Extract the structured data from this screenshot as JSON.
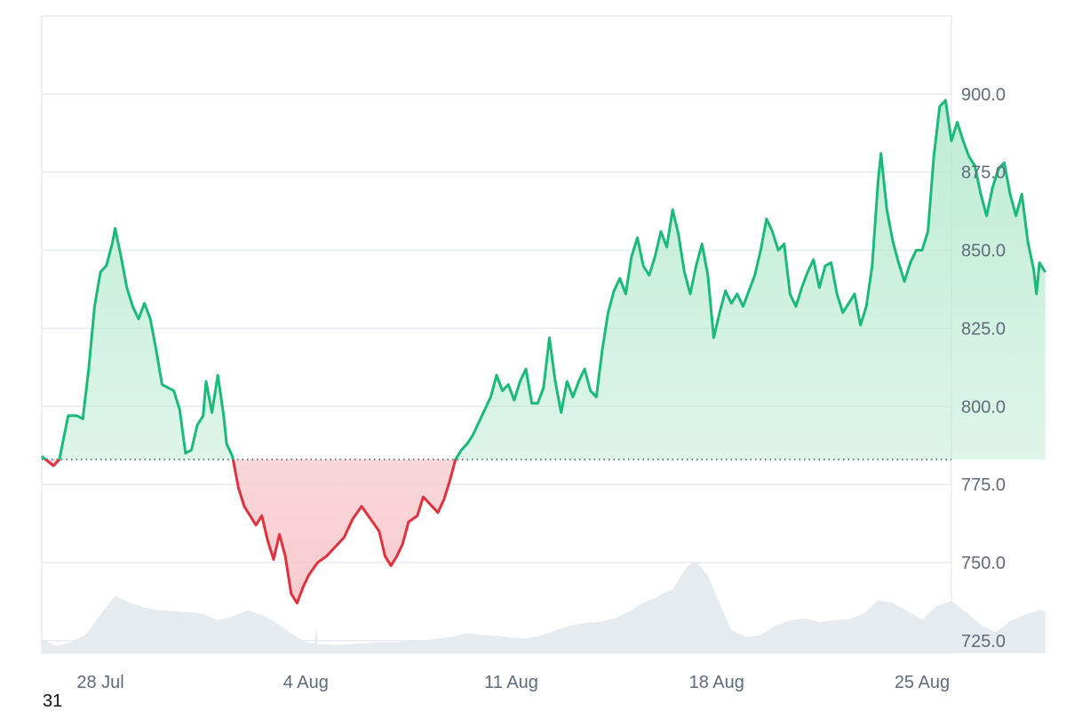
{
  "chart_data": {
    "type": "area",
    "x_axis": {
      "start": "2025-07-26",
      "end": "2025-08-26",
      "ticks": [
        "28 Jul",
        "4 Aug",
        "11 Aug",
        "18 Aug",
        "25 Aug"
      ],
      "tick_dates": [
        "2025-07-28",
        "2025-08-04",
        "2025-08-11",
        "2025-08-18",
        "2025-08-25"
      ]
    },
    "y_axis": {
      "position": "right",
      "ylim": [
        711,
        925
      ],
      "ticks": [
        "900.0",
        "875.0",
        "850.0",
        "825.0",
        "800.0",
        "775.0",
        "750.0",
        "725.0"
      ],
      "tick_values": [
        900,
        875,
        850,
        825,
        800,
        775,
        750,
        725
      ]
    },
    "baseline": 783,
    "grid": true,
    "series": [
      {
        "values": [
          [
            0.0,
            784
          ],
          [
            0.4,
            781
          ],
          [
            0.6,
            783
          ],
          [
            0.9,
            797
          ],
          [
            1.2,
            797
          ],
          [
            1.4,
            796
          ],
          [
            1.6,
            812
          ],
          [
            1.8,
            832
          ],
          [
            2.0,
            843
          ],
          [
            2.2,
            845
          ],
          [
            2.4,
            852
          ],
          [
            2.5,
            857
          ],
          [
            2.7,
            848
          ],
          [
            2.9,
            838
          ],
          [
            3.1,
            832
          ],
          [
            3.3,
            828
          ],
          [
            3.5,
            833
          ],
          [
            3.7,
            828
          ],
          [
            3.9,
            818
          ],
          [
            4.1,
            807
          ],
          [
            4.3,
            806
          ],
          [
            4.5,
            805
          ],
          [
            4.7,
            799
          ],
          [
            4.9,
            785
          ],
          [
            5.1,
            786
          ],
          [
            5.3,
            794
          ],
          [
            5.5,
            797
          ],
          [
            5.6,
            808
          ],
          [
            5.8,
            798
          ],
          [
            6.0,
            810
          ],
          [
            6.2,
            797
          ],
          [
            6.3,
            788
          ],
          [
            6.5,
            784
          ],
          [
            6.7,
            774
          ],
          [
            6.9,
            768
          ],
          [
            7.1,
            765
          ],
          [
            7.3,
            762
          ],
          [
            7.5,
            765
          ],
          [
            7.7,
            757
          ],
          [
            7.9,
            751
          ],
          [
            8.1,
            759
          ],
          [
            8.3,
            752
          ],
          [
            8.5,
            740
          ],
          [
            8.7,
            737
          ],
          [
            8.9,
            742
          ],
          [
            9.1,
            746
          ],
          [
            9.4,
            750
          ],
          [
            9.7,
            752
          ],
          [
            10.0,
            755
          ],
          [
            10.3,
            758
          ],
          [
            10.6,
            764
          ],
          [
            10.9,
            768
          ],
          [
            11.2,
            764
          ],
          [
            11.5,
            760
          ],
          [
            11.7,
            752
          ],
          [
            11.9,
            749
          ],
          [
            12.1,
            752
          ],
          [
            12.3,
            756
          ],
          [
            12.5,
            763
          ],
          [
            12.8,
            765
          ],
          [
            13.0,
            771
          ],
          [
            13.3,
            768
          ],
          [
            13.5,
            766
          ],
          [
            13.7,
            770
          ],
          [
            13.9,
            776
          ],
          [
            14.1,
            783
          ],
          [
            14.3,
            786
          ],
          [
            14.5,
            788
          ],
          [
            14.7,
            791
          ],
          [
            14.9,
            795
          ],
          [
            15.1,
            799
          ],
          [
            15.3,
            803
          ],
          [
            15.5,
            810
          ],
          [
            15.7,
            805
          ],
          [
            15.9,
            807
          ],
          [
            16.1,
            802
          ],
          [
            16.3,
            808
          ],
          [
            16.5,
            812
          ],
          [
            16.7,
            801
          ],
          [
            16.9,
            801
          ],
          [
            17.1,
            806
          ],
          [
            17.3,
            822
          ],
          [
            17.5,
            808
          ],
          [
            17.7,
            798
          ],
          [
            17.9,
            808
          ],
          [
            18.1,
            803
          ],
          [
            18.3,
            808
          ],
          [
            18.5,
            812
          ],
          [
            18.7,
            805
          ],
          [
            18.9,
            803
          ],
          [
            19.1,
            818
          ],
          [
            19.3,
            830
          ],
          [
            19.5,
            837
          ],
          [
            19.7,
            841
          ],
          [
            19.9,
            836
          ],
          [
            20.1,
            848
          ],
          [
            20.3,
            854
          ],
          [
            20.5,
            845
          ],
          [
            20.7,
            842
          ],
          [
            20.9,
            848
          ],
          [
            21.1,
            856
          ],
          [
            21.3,
            851
          ],
          [
            21.5,
            863
          ],
          [
            21.7,
            855
          ],
          [
            21.9,
            843
          ],
          [
            22.1,
            836
          ],
          [
            22.3,
            845
          ],
          [
            22.5,
            852
          ],
          [
            22.7,
            842
          ],
          [
            22.9,
            822
          ],
          [
            23.1,
            830
          ],
          [
            23.3,
            837
          ],
          [
            23.5,
            833
          ],
          [
            23.7,
            836
          ],
          [
            23.9,
            832
          ],
          [
            24.1,
            837
          ],
          [
            24.3,
            842
          ],
          [
            24.5,
            850
          ],
          [
            24.7,
            860
          ],
          [
            24.9,
            856
          ],
          [
            25.1,
            850
          ],
          [
            25.3,
            852
          ],
          [
            25.5,
            836
          ],
          [
            25.7,
            832
          ],
          [
            25.9,
            838
          ],
          [
            26.1,
            843
          ],
          [
            26.3,
            847
          ],
          [
            26.5,
            838
          ],
          [
            26.7,
            845
          ],
          [
            26.9,
            846
          ],
          [
            27.1,
            836
          ],
          [
            27.3,
            830
          ],
          [
            27.5,
            833
          ],
          [
            27.7,
            836
          ],
          [
            27.9,
            826
          ],
          [
            28.1,
            832
          ],
          [
            28.3,
            845
          ],
          [
            28.5,
            872
          ],
          [
            28.6,
            881
          ],
          [
            28.8,
            863
          ],
          [
            29.0,
            853
          ],
          [
            29.2,
            846
          ],
          [
            29.4,
            840
          ],
          [
            29.6,
            846
          ],
          [
            29.8,
            850
          ],
          [
            30.0,
            850
          ],
          [
            30.2,
            856
          ],
          [
            30.4,
            880
          ],
          [
            30.6,
            896
          ],
          [
            30.8,
            898
          ],
          [
            31.0,
            885
          ],
          [
            31.2,
            891
          ],
          [
            31.4,
            885
          ],
          [
            31.6,
            880
          ],
          [
            31.8,
            877
          ],
          [
            32.0,
            868
          ],
          [
            32.2,
            861
          ],
          [
            32.4,
            870
          ],
          [
            32.6,
            876
          ],
          [
            32.8,
            878
          ],
          [
            33.0,
            868
          ],
          [
            33.2,
            861
          ],
          [
            33.4,
            868
          ],
          [
            33.6,
            853
          ],
          [
            33.8,
            844
          ],
          [
            33.9,
            836
          ],
          [
            34.0,
            846
          ],
          [
            34.2,
            843
          ]
        ]
      }
    ],
    "volume": [
      [
        0.0,
        0.15
      ],
      [
        0.5,
        0.08
      ],
      [
        1.0,
        0.12
      ],
      [
        1.5,
        0.2
      ],
      [
        2.0,
        0.42
      ],
      [
        2.5,
        0.63
      ],
      [
        3.0,
        0.55
      ],
      [
        3.5,
        0.5
      ],
      [
        4.0,
        0.47
      ],
      [
        4.5,
        0.46
      ],
      [
        5.0,
        0.45
      ],
      [
        5.5,
        0.43
      ],
      [
        6.0,
        0.36
      ],
      [
        6.5,
        0.4
      ],
      [
        7.0,
        0.47
      ],
      [
        7.5,
        0.42
      ],
      [
        8.0,
        0.33
      ],
      [
        8.5,
        0.22
      ],
      [
        9.0,
        0.12
      ],
      [
        9.3,
        0.11
      ],
      [
        9.35,
        0.28
      ],
      [
        9.4,
        0.1
      ],
      [
        10.0,
        0.09
      ],
      [
        10.5,
        0.1
      ],
      [
        11.0,
        0.11
      ],
      [
        11.5,
        0.12
      ],
      [
        12.0,
        0.12
      ],
      [
        12.5,
        0.13
      ],
      [
        13.0,
        0.14
      ],
      [
        13.5,
        0.16
      ],
      [
        14.0,
        0.18
      ],
      [
        14.5,
        0.22
      ],
      [
        15.0,
        0.2
      ],
      [
        15.5,
        0.19
      ],
      [
        16.0,
        0.17
      ],
      [
        16.5,
        0.16
      ],
      [
        17.0,
        0.19
      ],
      [
        17.5,
        0.25
      ],
      [
        18.0,
        0.3
      ],
      [
        18.5,
        0.33
      ],
      [
        19.0,
        0.34
      ],
      [
        19.5,
        0.38
      ],
      [
        20.0,
        0.45
      ],
      [
        20.5,
        0.55
      ],
      [
        21.0,
        0.62
      ],
      [
        21.5,
        0.7
      ],
      [
        22.0,
        0.95
      ],
      [
        22.3,
        1.0
      ],
      [
        22.7,
        0.85
      ],
      [
        23.0,
        0.62
      ],
      [
        23.5,
        0.25
      ],
      [
        24.0,
        0.18
      ],
      [
        24.5,
        0.2
      ],
      [
        25.0,
        0.3
      ],
      [
        25.5,
        0.36
      ],
      [
        26.0,
        0.38
      ],
      [
        26.5,
        0.34
      ],
      [
        27.0,
        0.36
      ],
      [
        27.5,
        0.37
      ],
      [
        28.0,
        0.43
      ],
      [
        28.5,
        0.58
      ],
      [
        29.0,
        0.55
      ],
      [
        29.5,
        0.46
      ],
      [
        30.0,
        0.37
      ],
      [
        30.5,
        0.52
      ],
      [
        31.0,
        0.57
      ],
      [
        31.5,
        0.45
      ],
      [
        32.0,
        0.31
      ],
      [
        32.5,
        0.23
      ],
      [
        33.0,
        0.35
      ],
      [
        33.5,
        0.42
      ],
      [
        34.0,
        0.47
      ],
      [
        34.2,
        0.46
      ]
    ],
    "colors": {
      "up_line": "#1aba7a",
      "down_line": "#e0313d",
      "up_fill_top": "#aee7cb",
      "down_fill": "#f7c6ca",
      "volume": "#e6ebf0",
      "grid": "#e7eaee",
      "baseline": "#4b5563",
      "axis_text": "#5f6b7a"
    }
  },
  "corner_label": "31"
}
